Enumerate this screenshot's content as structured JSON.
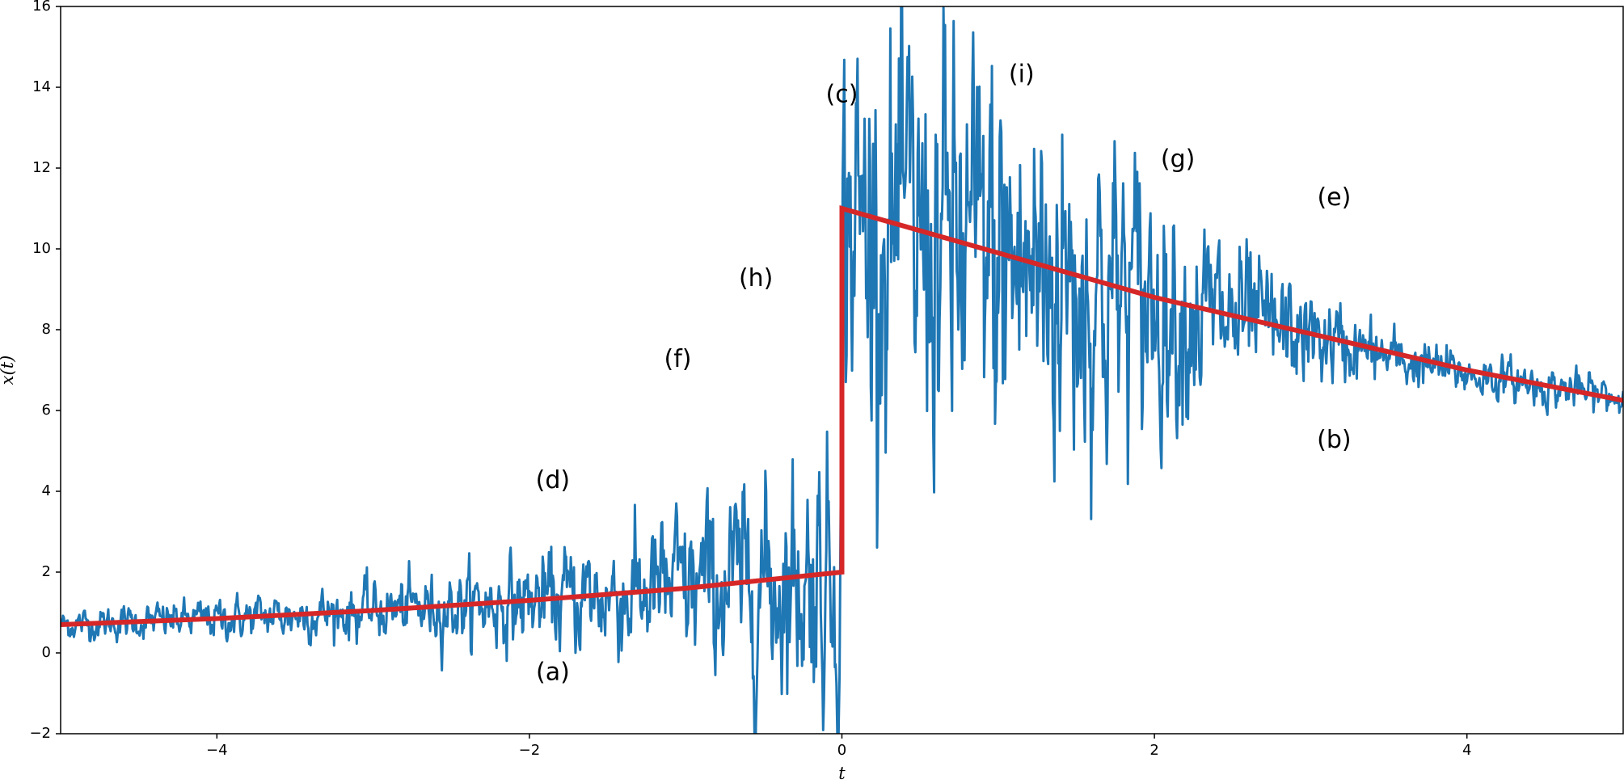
{
  "chart_data": {
    "type": "line",
    "title": "",
    "xlabel": "t",
    "ylabel": "x(t)",
    "xlim": [
      -5,
      5
    ],
    "ylim": [
      -2,
      16
    ],
    "xticks": [
      -4,
      -2,
      0,
      2,
      4
    ],
    "xtick_labels": [
      "−4",
      "−2",
      "0",
      "2",
      "4"
    ],
    "yticks": [
      -2,
      0,
      2,
      4,
      6,
      8,
      10,
      12,
      14,
      16
    ],
    "ytick_labels": [
      "−2",
      "0",
      "2",
      "4",
      "6",
      "8",
      "10",
      "12",
      "14",
      "16"
    ],
    "grid": false,
    "series": [
      {
        "color": "#1f77b4",
        "kind": "noisy",
        "x": [
          -5,
          -4.5,
          -4,
          -3.5,
          -3,
          -2.5,
          -2,
          -1.5,
          -1,
          -0.5,
          -0.01,
          0,
          0.01,
          0.5,
          1,
          1.5,
          2,
          2.5,
          3,
          3.5,
          4,
          4.5,
          5
        ],
        "y": [
          0.7,
          0.77,
          0.85,
          0.94,
          1.04,
          1.15,
          1.28,
          1.42,
          1.58,
          1.76,
          1.98,
          6.5,
          10.8,
          10.1,
          9.6,
          9.2,
          8.7,
          8.2,
          7.8,
          7.3,
          6.9,
          6.6,
          6.3
        ]
      },
      {
        "color": "#d62728",
        "kind": "trend",
        "x": [
          -5,
          -4,
          -3,
          -2,
          -1,
          0,
          0,
          1,
          2,
          3,
          4,
          5
        ],
        "y": [
          0.7,
          0.85,
          1.05,
          1.3,
          1.6,
          2.0,
          11.0,
          9.9,
          8.8,
          7.9,
          7.0,
          6.25
        ]
      }
    ],
    "annotations": [
      {
        "text": "(a)",
        "x": -1.85,
        "y": -0.5
      },
      {
        "text": "(b)",
        "x": 3.15,
        "y": 5.25
      },
      {
        "text": "(c)",
        "x": 0.0,
        "y": 13.8
      },
      {
        "text": "(d)",
        "x": -1.85,
        "y": 4.25
      },
      {
        "text": "(e)",
        "x": 3.15,
        "y": 11.25
      },
      {
        "text": "(f)",
        "x": -1.05,
        "y": 7.25
      },
      {
        "text": "(g)",
        "x": 2.15,
        "y": 12.2
      },
      {
        "text": "(h)",
        "x": -0.55,
        "y": 9.25
      },
      {
        "text": "(i)",
        "x": 1.15,
        "y": 14.3
      }
    ]
  }
}
